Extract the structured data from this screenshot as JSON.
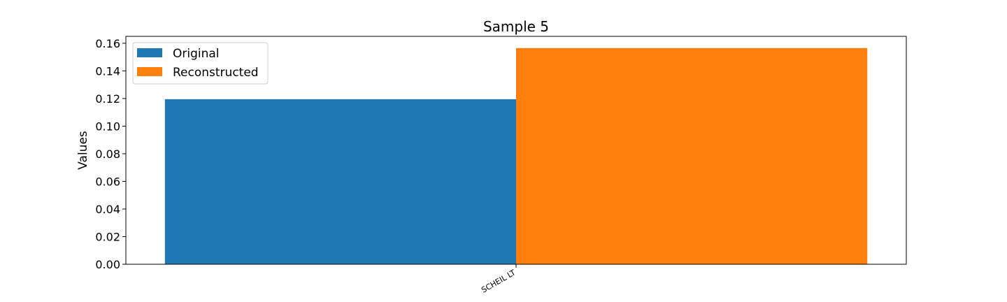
{
  "chart_data": {
    "type": "bar",
    "title": "Sample 5",
    "xlabel": "",
    "ylabel": "Values",
    "categories": [
      "SCHEIL LT"
    ],
    "series": [
      {
        "name": "Original",
        "values": [
          0.1195
        ],
        "color": "#1f77b4"
      },
      {
        "name": "Reconstructed",
        "values": [
          0.1565
        ],
        "color": "#ff7f0e"
      }
    ],
    "ylim": [
      0,
      0.165
    ],
    "yticks": [
      "0.00",
      "0.02",
      "0.04",
      "0.06",
      "0.08",
      "0.10",
      "0.12",
      "0.14",
      "0.16"
    ],
    "ytick_values": [
      0,
      0.02,
      0.04,
      0.06,
      0.08,
      0.1,
      0.12,
      0.14,
      0.16
    ],
    "grid": false,
    "legend_position": "top-left"
  }
}
